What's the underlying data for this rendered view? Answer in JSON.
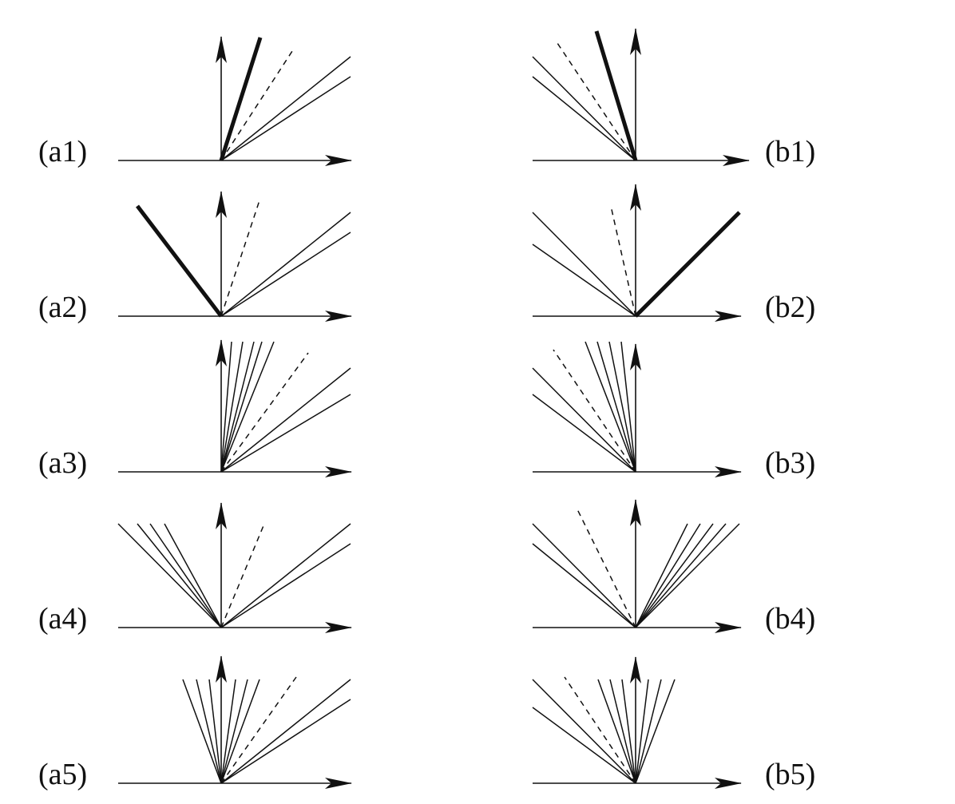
{
  "figure": {
    "color": "#111111",
    "panels": [
      {
        "id": "a1",
        "label": "(a1)"
      },
      {
        "id": "a2",
        "label": "(a2)"
      },
      {
        "id": "a3",
        "label": "(a3)"
      },
      {
        "id": "a4",
        "label": "(a4)"
      },
      {
        "id": "a5",
        "label": "(a5)"
      },
      {
        "id": "b1",
        "label": "(b1)"
      },
      {
        "id": "b2",
        "label": "(b2)"
      },
      {
        "id": "b3",
        "label": "(b3)"
      },
      {
        "id": "b4",
        "label": "(b4)"
      },
      {
        "id": "b5",
        "label": "(b5)"
      }
    ]
  }
}
